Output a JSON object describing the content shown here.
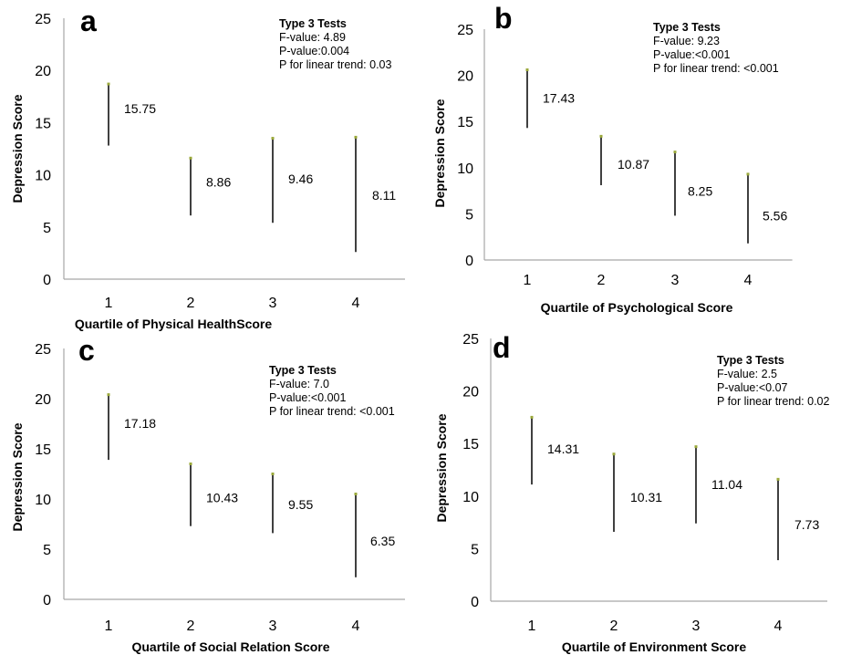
{
  "chart_data": [
    {
      "type": "range",
      "panel": "a",
      "categories": [
        "1",
        "2",
        "3",
        "4"
      ],
      "values": [
        15.75,
        8.86,
        9.46,
        8.11
      ],
      "low": [
        12.8,
        6.1,
        5.4,
        2.6
      ],
      "high": [
        18.7,
        11.6,
        13.5,
        13.6
      ],
      "xlabel": "Quartile of Physical HealthScore",
      "ylabel": "Depression Score",
      "ylim": [
        0,
        25
      ],
      "yticks": [
        0,
        5,
        10,
        15,
        20,
        25
      ],
      "annotation": [
        "Type 3 Tests",
        "F-value: 4.89",
        "P-value:0.004",
        "P for linear trend: 0.03"
      ]
    },
    {
      "type": "range",
      "panel": "b",
      "categories": [
        "1",
        "2",
        "3",
        "4"
      ],
      "values": [
        17.43,
        10.87,
        8.25,
        5.56
      ],
      "low": [
        14.3,
        8.1,
        4.8,
        1.8
      ],
      "high": [
        20.6,
        13.4,
        11.7,
        9.3
      ],
      "xlabel": "Quartile of Psychological Score",
      "ylabel": "Depression Score",
      "ylim": [
        0,
        25
      ],
      "yticks": [
        0,
        5,
        10,
        15,
        20,
        25
      ],
      "annotation": [
        "Type 3 Tests",
        "F-value: 9.23",
        "P-value:<0.001",
        "P for linear trend: <0.001"
      ]
    },
    {
      "type": "range",
      "panel": "c",
      "categories": [
        "1",
        "2",
        "3",
        "4"
      ],
      "values": [
        17.18,
        10.43,
        9.55,
        6.35
      ],
      "low": [
        13.9,
        7.3,
        6.6,
        2.2
      ],
      "high": [
        20.4,
        13.5,
        12.5,
        10.5
      ],
      "xlabel": "Quartile of Social Relation Score",
      "ylabel": "Depression Score",
      "ylim": [
        0,
        25
      ],
      "yticks": [
        0,
        5,
        10,
        15,
        20,
        25
      ],
      "annotation": [
        "Type 3 Tests",
        "F-value: 7.0",
        "P-value:<0.001",
        "P for linear trend: <0.001"
      ]
    },
    {
      "type": "range",
      "panel": "d",
      "categories": [
        "1",
        "2",
        "3",
        "4"
      ],
      "values": [
        14.31,
        10.31,
        11.04,
        7.73
      ],
      "low": [
        11.1,
        6.6,
        7.4,
        3.9
      ],
      "high": [
        17.5,
        14.0,
        14.7,
        11.6
      ],
      "xlabel": "Quartile of Environment Score",
      "ylabel": "Depression Score",
      "ylim": [
        0,
        25
      ],
      "yticks": [
        0,
        5,
        10,
        15,
        20,
        25
      ],
      "annotation": [
        "Type 3 Tests",
        "F-value: 2.5",
        "P-value:<0.07",
        "P for linear trend: 0.02"
      ]
    }
  ],
  "colors": {
    "cap": "#9aa83a",
    "axis": "#a6a6a6",
    "line": "#000000"
  }
}
